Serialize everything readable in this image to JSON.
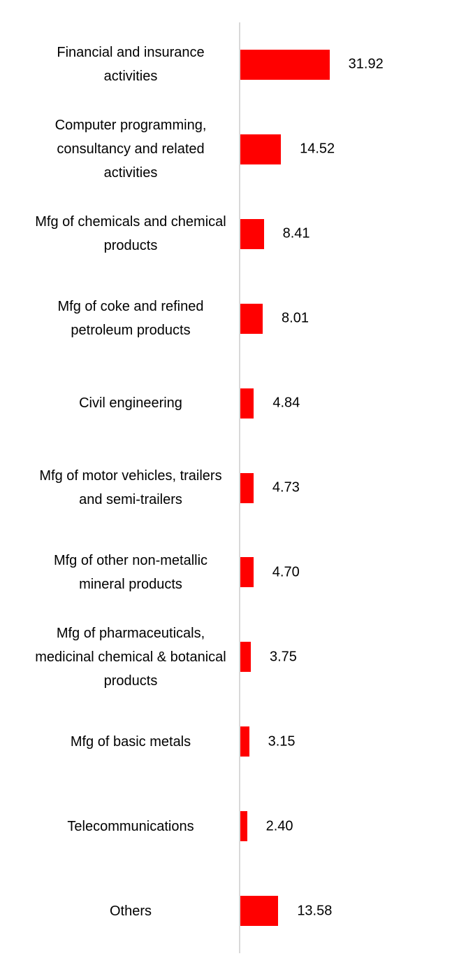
{
  "chart_data": {
    "type": "bar",
    "orientation": "horizontal",
    "categories": [
      "Financial and insurance activities",
      "Computer programming, consultancy and related activities",
      "Mfg of chemicals and chemical products",
      "Mfg of coke and refined petroleum products",
      "Civil engineering",
      "Mfg of motor vehicles, trailers and semi-trailers",
      "Mfg of other non-metallic mineral products",
      "Mfg of pharmaceuticals, medicinal chemical & botanical products",
      "Mfg of basic metals",
      "Telecommunications",
      "Others"
    ],
    "values": [
      31.92,
      14.52,
      8.41,
      8.01,
      4.84,
      4.73,
      4.7,
      3.75,
      3.15,
      2.4,
      13.58
    ],
    "value_labels": [
      "31.92",
      "14.52",
      "8.41",
      "8.01",
      "4.84",
      "4.73",
      "4.70",
      "3.75",
      "3.15",
      "2.40",
      "13.58"
    ],
    "color": "#ff0000",
    "xlim": [
      0,
      78
    ]
  }
}
